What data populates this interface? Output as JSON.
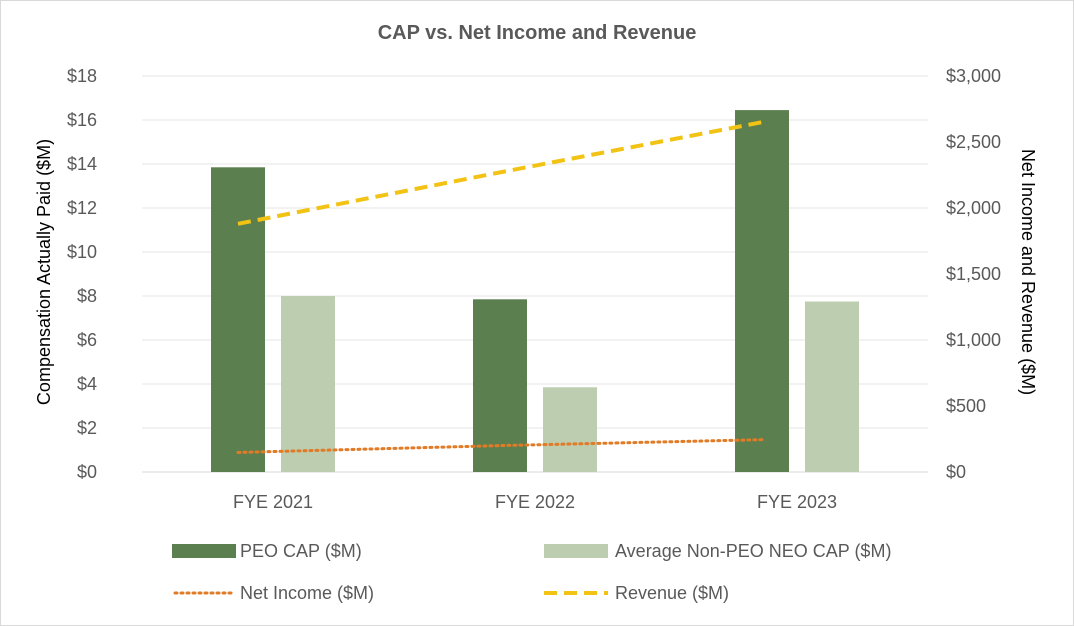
{
  "chart_data": {
    "type": "bar",
    "title": "CAP vs. Net Income and Revenue",
    "categories": [
      "FYE 2021",
      "FYE 2022",
      "FYE 2023"
    ],
    "ylabel": "Compensation Actually Paid ($M)",
    "y2label": "Net Income and Revenue ($M)",
    "ylim": [
      0,
      18
    ],
    "y2lim": [
      0,
      3000
    ],
    "yticks": [
      "$0",
      "$2",
      "$4",
      "$6",
      "$8",
      "$10",
      "$12",
      "$14",
      "$16",
      "$18"
    ],
    "y2ticks": [
      "$0",
      "$500",
      "$1,000",
      "$1,500",
      "$2,000",
      "$2,500",
      "$3,000"
    ],
    "grid": true,
    "legend_position": "bottom",
    "series": [
      {
        "name": "PEO CAP ($M)",
        "kind": "bar",
        "axis": "left",
        "color": "#5b7f4e",
        "values": [
          13.85,
          7.85,
          16.45
        ]
      },
      {
        "name": "Average Non-PEO NEO CAP ($M)",
        "kind": "bar",
        "axis": "left",
        "color": "#bccdb0",
        "values": [
          8.0,
          3.85,
          7.75
        ]
      },
      {
        "name": "Net Income ($M)",
        "kind": "line",
        "style": "dotted",
        "axis": "right",
        "color": "#e07b28",
        "values": [
          148,
          200,
          245
        ]
      },
      {
        "name": "Revenue ($M)",
        "kind": "line",
        "style": "dashed",
        "axis": "right",
        "color": "#f2c314",
        "values": [
          1880,
          2270,
          2650
        ]
      }
    ]
  }
}
